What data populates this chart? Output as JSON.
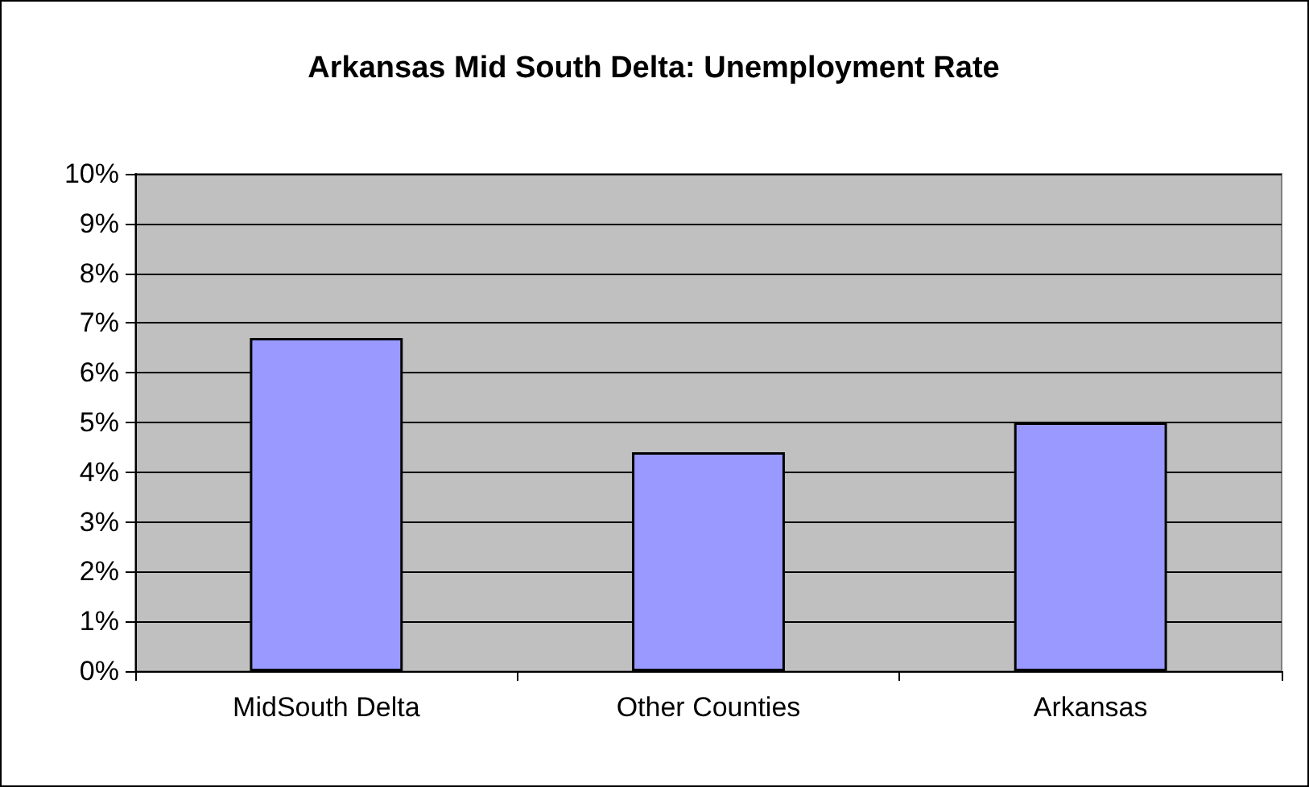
{
  "chart_data": {
    "type": "bar",
    "title": "Arkansas Mid South Delta: Unemployment Rate",
    "categories": [
      "MidSouth Delta",
      "Other Counties",
      "Arkansas"
    ],
    "values": [
      6.7,
      4.4,
      5.0
    ],
    "color": "#9999ff",
    "ylim": [
      0,
      10
    ],
    "yticks": [
      {
        "value": 0,
        "label": "0%"
      },
      {
        "value": 1,
        "label": "1%"
      },
      {
        "value": 2,
        "label": "2%"
      },
      {
        "value": 3,
        "label": "3%"
      },
      {
        "value": 4,
        "label": "4%"
      },
      {
        "value": 5,
        "label": "5%"
      },
      {
        "value": 6,
        "label": "6%"
      },
      {
        "value": 7,
        "label": "7%"
      },
      {
        "value": 8,
        "label": "8%"
      },
      {
        "value": 9,
        "label": "9%"
      },
      {
        "value": 10,
        "label": "10%"
      }
    ],
    "grid": "y"
  }
}
